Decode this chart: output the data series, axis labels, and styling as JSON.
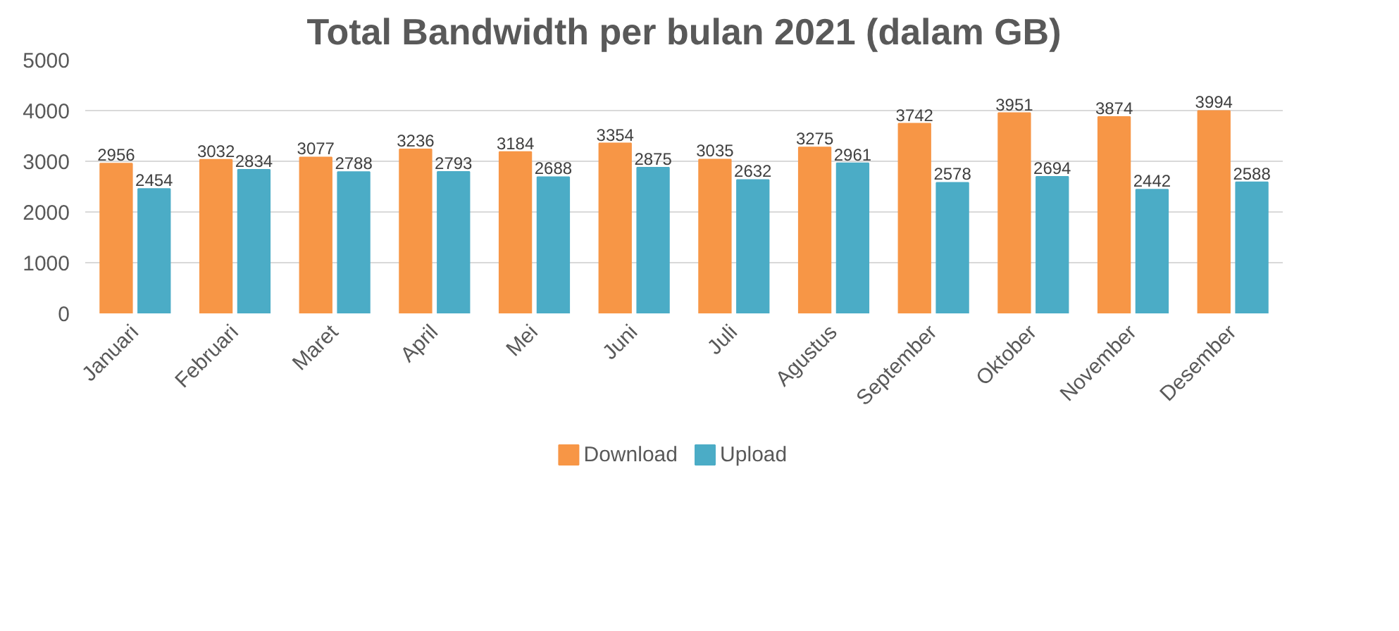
{
  "chart_data": {
    "type": "bar",
    "title": "Total Bandwidth per bulan 2021 (dalam GB)",
    "categories": [
      "Januari",
      "Februari",
      "Maret",
      "April",
      "Mei",
      "Juni",
      "Juli",
      "Agustus",
      "September",
      "Oktober",
      "November",
      "Desember"
    ],
    "series": [
      {
        "name": "Download",
        "color": "#f79646",
        "values": [
          2956,
          3032,
          3077,
          3236,
          3184,
          3354,
          3035,
          3275,
          3742,
          3951,
          3874,
          3994
        ]
      },
      {
        "name": "Upload",
        "color": "#4bacc6",
        "values": [
          2454,
          2834,
          2788,
          2793,
          2688,
          2875,
          2632,
          2961,
          2578,
          2694,
          2442,
          2588
        ]
      }
    ],
    "ylim": [
      0,
      5000
    ],
    "yticks": [
      0,
      1000,
      2000,
      3000,
      4000,
      5000
    ],
    "grid": "y",
    "legend": "bottom",
    "data_labels": true
  }
}
